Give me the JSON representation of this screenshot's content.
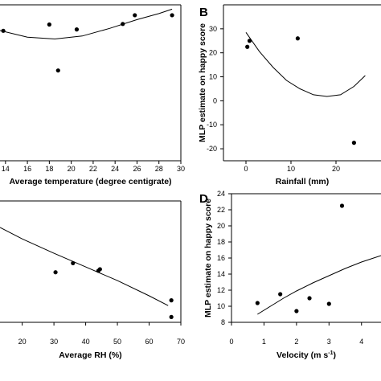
{
  "chart_data": [
    {
      "type": "scatter",
      "panel": "",
      "xlabel": "Average temperature (degree centigrate)",
      "ylabel": "",
      "xlim": [
        13.5,
        30
      ],
      "ylim": [
        -26,
        31
      ],
      "xticks": [
        14,
        16,
        18,
        20,
        22,
        24,
        26,
        28,
        30
      ],
      "yticks": [],
      "points": [
        {
          "x": 13.8,
          "y": 21.5
        },
        {
          "x": 18.0,
          "y": 23.8
        },
        {
          "x": 18.8,
          "y": 7.0
        },
        {
          "x": 20.5,
          "y": 22.0
        },
        {
          "x": 24.7,
          "y": 24.0
        },
        {
          "x": 25.8,
          "y": 27.2
        },
        {
          "x": 29.2,
          "y": 27.2
        }
      ],
      "fit_curve": [
        {
          "x": 13.5,
          "y": 21.6
        },
        {
          "x": 16,
          "y": 19.2
        },
        {
          "x": 18.5,
          "y": 18.5
        },
        {
          "x": 21,
          "y": 19.6
        },
        {
          "x": 23.5,
          "y": 22.4
        },
        {
          "x": 26,
          "y": 25.6
        },
        {
          "x": 28,
          "y": 27.8
        },
        {
          "x": 29.2,
          "y": 29.4
        }
      ]
    },
    {
      "type": "scatter",
      "panel": "B",
      "xlabel": "Rainfall (mm)",
      "ylabel": "MLP estimate on happy score",
      "xlim": [
        -5,
        30
      ],
      "ylim": [
        -25,
        40
      ],
      "xticks": [
        0,
        10,
        20
      ],
      "yticks": [
        -20,
        -10,
        0,
        10,
        20,
        30
      ],
      "points": [
        {
          "x": 0.3,
          "y": 22.5
        },
        {
          "x": 0.8,
          "y": 25.0
        },
        {
          "x": 11.5,
          "y": 26.0
        },
        {
          "x": 24.0,
          "y": -17.5
        }
      ],
      "fit_curve": [
        {
          "x": 0,
          "y": 28.5
        },
        {
          "x": 3,
          "y": 20.5
        },
        {
          "x": 6,
          "y": 14.0
        },
        {
          "x": 9,
          "y": 8.5
        },
        {
          "x": 12,
          "y": 5.0
        },
        {
          "x": 15,
          "y": 2.5
        },
        {
          "x": 18,
          "y": 1.8
        },
        {
          "x": 21,
          "y": 2.5
        },
        {
          "x": 24,
          "y": 6.0
        },
        {
          "x": 26.5,
          "y": 10.5
        }
      ]
    },
    {
      "type": "scatter",
      "panel": "",
      "xlabel": "Average RH (%)",
      "ylabel": "",
      "xlim": [
        13,
        70
      ],
      "ylim": [
        8.5,
        24.5
      ],
      "xticks": [
        20,
        30,
        40,
        50,
        60,
        70
      ],
      "yticks": [],
      "points": [
        {
          "x": 30.5,
          "y": 15.1
        },
        {
          "x": 36.0,
          "y": 16.3
        },
        {
          "x": 44.0,
          "y": 15.3
        },
        {
          "x": 44.5,
          "y": 15.5
        },
        {
          "x": 67.0,
          "y": 11.4
        },
        {
          "x": 67.0,
          "y": 9.2
        }
      ],
      "fit_curve": [
        {
          "x": 13,
          "y": 21.0
        },
        {
          "x": 20,
          "y": 19.5
        },
        {
          "x": 30,
          "y": 17.6
        },
        {
          "x": 40,
          "y": 15.8
        },
        {
          "x": 50,
          "y": 14.0
        },
        {
          "x": 60,
          "y": 12.0
        },
        {
          "x": 66,
          "y": 10.7
        }
      ]
    },
    {
      "type": "scatter",
      "panel": "D",
      "xlabel": "Velocity (m s",
      "xlabel_sup": "-1",
      "xlabel_tail": ")",
      "ylabel": "MLP estimate on happy score",
      "xlim": [
        0,
        4.6
      ],
      "ylim": [
        8,
        24
      ],
      "xticks": [
        0,
        1,
        2,
        3,
        4
      ],
      "yticks": [
        8,
        10,
        12,
        14,
        16,
        18,
        20,
        22,
        24
      ],
      "points": [
        {
          "x": 0.8,
          "y": 10.4
        },
        {
          "x": 1.5,
          "y": 11.5
        },
        {
          "x": 2.0,
          "y": 9.4
        },
        {
          "x": 2.4,
          "y": 11.0
        },
        {
          "x": 3.0,
          "y": 10.3
        },
        {
          "x": 3.4,
          "y": 22.5
        }
      ],
      "fit_curve": [
        {
          "x": 0.8,
          "y": 9.0
        },
        {
          "x": 1.2,
          "y": 10.0
        },
        {
          "x": 1.6,
          "y": 11.0
        },
        {
          "x": 2.0,
          "y": 11.9
        },
        {
          "x": 2.5,
          "y": 12.9
        },
        {
          "x": 3.0,
          "y": 13.8
        },
        {
          "x": 3.5,
          "y": 14.7
        },
        {
          "x": 4.0,
          "y": 15.5
        },
        {
          "x": 4.6,
          "y": 16.3
        }
      ]
    }
  ]
}
